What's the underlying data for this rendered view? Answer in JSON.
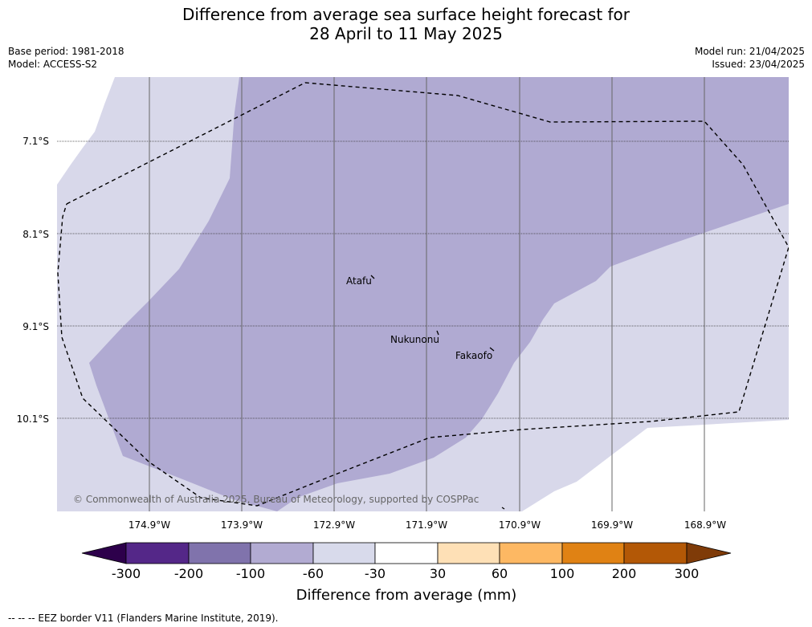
{
  "title": {
    "line1": "Difference from average sea surface height forecast for",
    "line2": "28 April to 11 May 2025"
  },
  "meta": {
    "base_period": "Base period: 1981-2018",
    "model": "Model: ACCESS-S2",
    "model_run": "Model run: 21/04/2025",
    "issued": "Issued: 23/04/2025"
  },
  "map": {
    "lat_labels": [
      "7.1°S",
      "8.1°S",
      "9.1°S",
      "10.1°S"
    ],
    "lon_labels": [
      "174.9°W",
      "173.9°W",
      "172.9°W",
      "171.9°W",
      "170.9°W",
      "169.9°W",
      "168.9°W"
    ],
    "places": [
      {
        "name": "Atafu"
      },
      {
        "name": "Nukunonu"
      },
      {
        "name": "Fakaofo"
      }
    ],
    "colors": {
      "band_neg100_neg60": "#b0aad2",
      "band_neg60_neg30": "#d8d8ea",
      "land": "#000000"
    },
    "copyright": "© Commonwealth of Australia 2025, Bureau of Meteorology, supported by COSPPac"
  },
  "colorbar": {
    "label": "Difference from average (mm)",
    "ticks": [
      "-300",
      "-200",
      "-100",
      "-60",
      "-30",
      "30",
      "60",
      "100",
      "200",
      "300"
    ],
    "colors": [
      "#2d004b",
      "#542788",
      "#8073ac",
      "#b2abd2",
      "#d8daeb",
      "#ffffff",
      "#fee0b6",
      "#fdb863",
      "#e08214",
      "#b35806",
      "#7f3b08"
    ]
  },
  "footer": {
    "legend": "--  --  -- EEZ border V11 (Flanders Marine Institute, 2019)."
  }
}
